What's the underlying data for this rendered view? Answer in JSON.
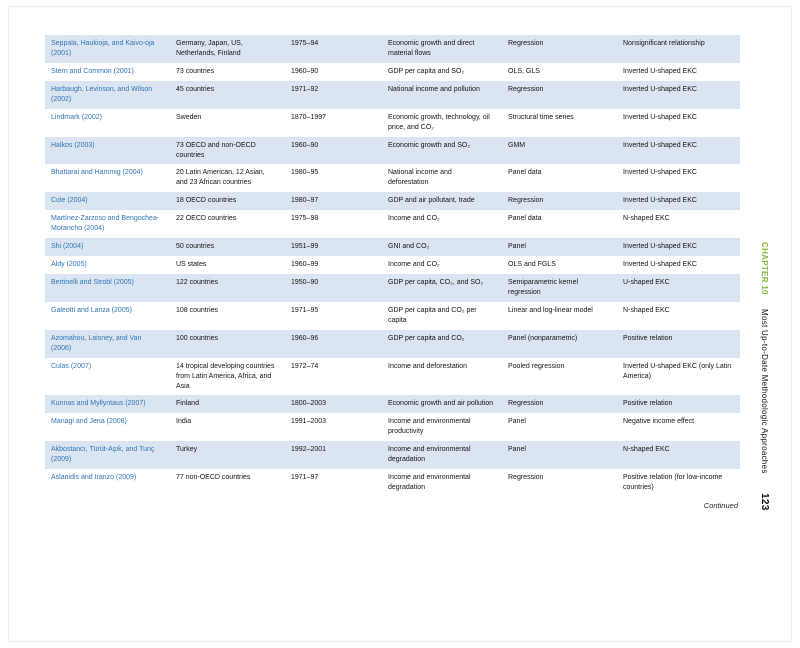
{
  "page": {
    "continued_label": "Continued",
    "page_number": "123",
    "chapter_label": "CHAPTER 10",
    "chapter_title": "Most Up-to-Date Methodologic Approaches"
  },
  "colors": {
    "row_stripe": "#dbe5f2",
    "author_link": "#2e75b6",
    "chapter_green": "#84b73f"
  },
  "table": {
    "columns": [
      "author",
      "countries",
      "period",
      "variables",
      "method",
      "result"
    ],
    "rows": [
      [
        "Seppala, Haukioja, and Kaivo-oja (2001)",
        "Germany, Japan, US, Netherlands, Finland",
        "1975–94",
        "Economic growth and direct material flows",
        "Regression",
        "Nonsignificant relationship"
      ],
      [
        "Stern and Common (2001)",
        "73 countries",
        "1960–90",
        "GDP per capita and SO₂",
        "OLS, GLS",
        "Inverted U-shaped EKC"
      ],
      [
        "Harbaugh, Levinson, and Wilson (2002)",
        "45 countries",
        "1971–92",
        "National income and pollution",
        "Regression",
        "Inverted U-shaped EKC"
      ],
      [
        "Lindmark (2002)",
        "Sweden",
        "1870–1997",
        "Economic growth, technology, oil price, and CO₂",
        "Structural time series",
        "Inverted U-shaped EKC"
      ],
      [
        "Halkos (2003)",
        "73 OECD and non-OECD countries",
        "1960–90",
        "Economic growth and SO₂",
        "GMM",
        "Inverted U-shaped EKC"
      ],
      [
        "Bhattarai and Hammig (2004)",
        "20 Latin American, 12 Asian, and 23 African countries",
        "1980–95",
        "National income and deforestation",
        "Panel data",
        "Inverted U-shaped EKC"
      ],
      [
        "Cole (2004)",
        "18 OECD countries",
        "1980–97",
        "GDP and air pollutant, trade",
        "Regression",
        "Inverted U-shaped EKC"
      ],
      [
        "Martínez-Zarzoso and Bengochea-Morancho (2004)",
        "22 OECD countries",
        "1975–98",
        "Income and CO₂",
        "Panel data",
        "N-shaped EKC"
      ],
      [
        "Shi (2004)",
        "50 countries",
        "1951–99",
        "GNI and CO₂",
        "Panel",
        "Inverted U-shaped EKC"
      ],
      [
        "Aldy (2005)",
        "US states",
        "1960–99",
        "Income and CO₂",
        "OLS and FGLS",
        "Inverted U-shaped EKC"
      ],
      [
        "Bertinelli and Strobl (2005)",
        "122 countries",
        "1950–90",
        "GDP per capita, CO₂, and SO₂",
        "Semiparametric kernel regression",
        "U-shaped EKC"
      ],
      [
        "Galeotti and Lanza (2005)",
        "108 countries",
        "1971–95",
        "GDP per capita and CO₂ per capita",
        "Linear and log-linear model",
        "N-shaped EKC"
      ],
      [
        "Azomahou, Laisney, and Van (2006)",
        "100 countries",
        "1960–96",
        "GDP per capita and CO₂",
        "Panel (nonparametric)",
        "Positive relation"
      ],
      [
        "Culas (2007)",
        "14 tropical developing countries from Latin America, Africa, and Asia",
        "1972–74",
        "Income and deforestation",
        "Pooled regression",
        "Inverted U-shaped EKC (only Latin America)"
      ],
      [
        "Kunnas and Myllyntaus (2007)",
        "Finland",
        "1800–2003",
        "Economic growth and air pollution",
        "Regression",
        "Positive relation"
      ],
      [
        "Managi and Jena (2008)",
        "India",
        "1991–2003",
        "Income and environmental productivity",
        "Panel",
        "Negative income effect"
      ],
      [
        "Akbostancı, Türüt-Aşık, and Tunç (2009)",
        "Turkey",
        "1992–2001",
        "Income and environmental degradation",
        "Panel",
        "N-shaped EKC"
      ],
      [
        "Aslanidis and Iranzo (2009)",
        "77 non-OECD countries",
        "1971–97",
        "Income and environmental degradation",
        "Regression",
        "Positive relation (for low-income countries)"
      ]
    ]
  }
}
